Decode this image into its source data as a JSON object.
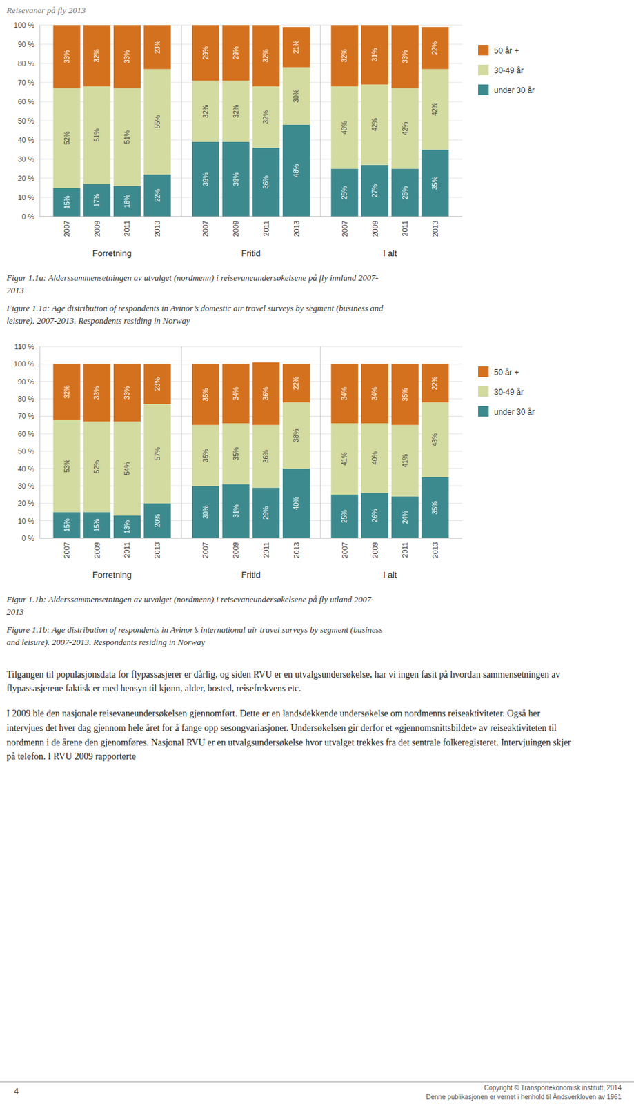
{
  "header": "Reisevaner på fly 2013",
  "chart_data": [
    {
      "type": "bar",
      "stacked": true,
      "data_labels": true,
      "grid": true,
      "legend": "right",
      "categories": [
        "2007",
        "2009",
        "2011",
        "2013",
        "2007",
        "2009",
        "2011",
        "2013",
        "2007",
        "2009",
        "2011",
        "2013"
      ],
      "groups": [
        "Forretning",
        "Fritid",
        "I alt"
      ],
      "series": [
        {
          "name": "under 30 år",
          "color": "#3d8a8e",
          "values": [
            15,
            17,
            16,
            22,
            39,
            39,
            36,
            48,
            25,
            27,
            25,
            35
          ],
          "value_labels": [
            "15%",
            "17%",
            "16%",
            "22%",
            "39%",
            "39%",
            "36%",
            "48%",
            "25%",
            "27%",
            "25%",
            "35%"
          ]
        },
        {
          "name": "30-49 år",
          "color": "#d4dba0",
          "values": [
            52,
            51,
            51,
            55,
            32,
            32,
            32,
            30,
            43,
            42,
            42,
            42
          ],
          "value_labels": [
            "52%",
            "51%",
            "51%",
            "55%",
            "32%",
            "32%",
            "32%",
            "30%",
            "43%",
            "42%",
            "42%",
            "42%"
          ]
        },
        {
          "name": "50 år +",
          "color": "#d4711e",
          "values": [
            33,
            32,
            33,
            23,
            29,
            29,
            32,
            21,
            32,
            31,
            33,
            22
          ],
          "value_labels": [
            "33%",
            "32%",
            "33%",
            "23%",
            "29%",
            "29%",
            "32%",
            "21%",
            "32%",
            "31%",
            "33%",
            "22%"
          ]
        }
      ],
      "ylim": [
        0,
        100
      ],
      "yticks": [
        {
          "value": 0,
          "label": "0 %"
        },
        {
          "value": 10,
          "label": "10 %"
        },
        {
          "value": 20,
          "label": "20 %"
        },
        {
          "value": 30,
          "label": "30 %"
        },
        {
          "value": 40,
          "label": "40 %"
        },
        {
          "value": 50,
          "label": "50 %"
        },
        {
          "value": 60,
          "label": "60 %"
        },
        {
          "value": 70,
          "label": "70 %"
        },
        {
          "value": 80,
          "label": "80 %"
        },
        {
          "value": 90,
          "label": "90 %"
        },
        {
          "value": 100,
          "label": "100 %"
        }
      ],
      "caption": [
        "Figur 1.1a: Alderssammensetningen av utvalget (nordmenn) i reisevaneundersøkelsene på fly innland 2007-\n2013",
        "Figure 1.1a: Age distribution of respondents in Avinor’s domestic air travel surveys by segment (business and\nleisure). 2007-2013. Respondents residing in Norway"
      ]
    },
    {
      "type": "bar",
      "stacked": true,
      "data_labels": true,
      "grid": true,
      "legend": "right",
      "categories": [
        "2007",
        "2009",
        "2011",
        "2013",
        "2007",
        "2009",
        "2011",
        "2013",
        "2007",
        "2009",
        "2011",
        "2013"
      ],
      "groups": [
        "Forretning",
        "Fritid",
        "I alt"
      ],
      "series": [
        {
          "name": "under 30 år",
          "color": "#3d8a8e",
          "values": [
            15,
            15,
            13,
            20,
            30,
            31,
            29,
            40,
            25,
            26,
            24,
            35
          ],
          "value_labels": [
            "15%",
            "15%",
            "13%",
            "20%",
            "30%",
            "31%",
            "29%",
            "40%",
            "25%",
            "26%",
            "24%",
            "35%"
          ]
        },
        {
          "name": "30-49 år",
          "color": "#d4dba0",
          "values": [
            53,
            52,
            54,
            57,
            35,
            35,
            36,
            38,
            41,
            40,
            41,
            43
          ],
          "value_labels": [
            "53%",
            "52%",
            "54%",
            "57%",
            "35%",
            "35%",
            "36%",
            "38%",
            "41%",
            "40%",
            "41%",
            "43%"
          ]
        },
        {
          "name": "50 år +",
          "color": "#d4711e",
          "values": [
            32,
            33,
            33,
            23,
            35,
            34,
            36,
            22,
            34,
            34,
            35,
            22
          ],
          "value_labels": [
            "32%",
            "33%",
            "33%",
            "23%",
            "35%",
            "34%",
            "36%",
            "22%",
            "34%",
            "34%",
            "35%",
            "22%"
          ]
        }
      ],
      "ylim": [
        0,
        110
      ],
      "yticks": [
        {
          "value": 0,
          "label": "0 %"
        },
        {
          "value": 10,
          "label": "10 %"
        },
        {
          "value": 20,
          "label": "20 %"
        },
        {
          "value": 30,
          "label": "30 %"
        },
        {
          "value": 40,
          "label": "40 %"
        },
        {
          "value": 50,
          "label": "50 %"
        },
        {
          "value": 60,
          "label": "60 %"
        },
        {
          "value": 70,
          "label": "70 %"
        },
        {
          "value": 80,
          "label": "80 %"
        },
        {
          "value": 90,
          "label": "90 %"
        },
        {
          "value": 100,
          "label": "100 %"
        },
        {
          "value": 110,
          "label": "110 %"
        }
      ],
      "caption": [
        "Figur 1.1b: Alderssammensetningen av utvalget (nordmenn) i reisevaneundersøkelsene på fly utland 2007-\n2013",
        "Figure 1.1b: Age distribution of respondents in Avinor’s international air travel surveys by segment (business\nand leisure). 2007-2013. Respondents residing in Norway"
      ]
    }
  ],
  "paragraphs": [
    "Tilgangen til populasjonsdata for flypassasjerer er dårlig, og siden RVU er en utvalgsundersøkelse, har vi ingen fasit på hvordan sammensetningen av flypassasjerene faktisk er med hensyn til kjønn, alder, bosted, reisefrekvens etc.",
    "I 2009 ble den nasjonale reisevaneundersøkelsen gjennomført. Dette er en landsdekkende undersøkelse om nordmenns reiseaktiviteter. Også her intervjues det hver dag gjennom hele året for å fange opp sesongvariasjoner. Undersøkelsen gir derfor et «gjennomsnittsbildet» av reiseaktiviteten til nordmenn i de årene den gjenomføres. Nasjonal RVU er en utvalgsundersøkelse hvor utvalget trekkes fra det sentrale folkeregisteret. Intervjuingen skjer på telefon. I RVU 2009 rapporterte"
  ],
  "footer": [
    "4",
    "Copyright © Transportekonomisk institutt, 2014",
    "Denne publikasjonen er vernet i henhold til Åndsverkloven av 1961"
  ]
}
